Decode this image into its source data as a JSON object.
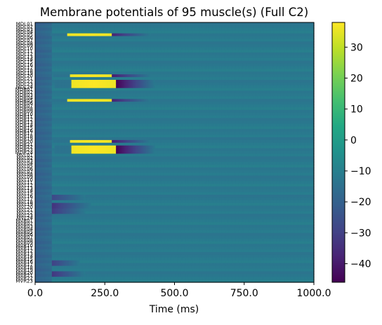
{
  "chart_data": {
    "type": "heatmap",
    "title": "Membrane potentials of 95 muscle(s) (Full C2)",
    "xlabel": "Time (ms)",
    "ylabel": "",
    "xlim": [
      0,
      1000
    ],
    "x_ticks": [
      "0.0",
      "250.0",
      "500.0",
      "750.0",
      "1000.0"
    ],
    "x_tick_values": [
      0,
      250,
      500,
      750,
      1000
    ],
    "colorbar": {
      "colormap": "viridis",
      "range": [
        -46,
        38
      ],
      "ticks": [
        -40,
        -30,
        -20,
        -10,
        0,
        10,
        20,
        30
      ],
      "tick_labels": [
        "−40",
        "−30",
        "−20",
        "−10",
        "0",
        "10",
        "20",
        "30"
      ]
    },
    "row_count": 95,
    "row_labels": [
      "MDL01",
      "MDL02",
      "MDL03",
      "MDL04",
      "MDL05",
      "MDL06",
      "MDL07",
      "MDL08",
      "MDL09",
      "MDL10",
      "MDL11",
      "MDL12",
      "MDL13",
      "MDL14",
      "MDL15",
      "MDL16",
      "MDL17",
      "MDL18",
      "MDL19",
      "MDL20",
      "MDL21",
      "MDL22",
      "MDL23",
      "MDL24",
      "MDR01",
      "MDR02",
      "MDR03",
      "MDR04",
      "MDR05",
      "MDR06",
      "MDR07",
      "MDR08",
      "MDR09",
      "MDR10",
      "MDR11",
      "MDR12",
      "MDR13",
      "MDR14",
      "MDR15",
      "MDR16",
      "MDR17",
      "MDR18",
      "MDR19",
      "MDR20",
      "MDR21",
      "MDR22",
      "MDR23",
      "MDR24",
      "MVL01",
      "MVL02",
      "MVL03",
      "MVL04",
      "MVL05",
      "MVL06",
      "MVL07",
      "MVL08",
      "MVL09",
      "MVL10",
      "MVL11",
      "MVL12",
      "MVL13",
      "MVL14",
      "MVL15",
      "MVL16",
      "MVL17",
      "MVL18",
      "MVL19",
      "MVL20",
      "MVL21",
      "MVL22",
      "MVL23",
      "MVL24",
      "MVR01",
      "MVR02",
      "MVR03",
      "MVR04",
      "MVR05",
      "MVR06",
      "MVR07",
      "MVR08",
      "MVR09",
      "MVR10",
      "MVR11",
      "MVR12",
      "MVR13",
      "MVR14",
      "MVR15",
      "MVR16",
      "MVR17",
      "MVR18",
      "MVR19",
      "MVR20",
      "MVR21",
      "MVR22",
      "MVR23"
    ],
    "baseline_mV": -12,
    "hot_rows": [
      {
        "rows": [
          4
        ],
        "start_ms": 115,
        "end_ms": 275,
        "peak_mV": 38,
        "trough_mV": -38
      },
      {
        "rows": [
          19
        ],
        "start_ms": 125,
        "end_ms": 275,
        "peak_mV": 38,
        "trough_mV": -40
      },
      {
        "rows": [
          21,
          22,
          23
        ],
        "start_ms": 130,
        "end_ms": 290,
        "peak_mV": 38,
        "trough_mV": -46
      },
      {
        "rows": [
          28
        ],
        "start_ms": 115,
        "end_ms": 275,
        "peak_mV": 38,
        "trough_mV": -38
      },
      {
        "rows": [
          43
        ],
        "start_ms": 125,
        "end_ms": 275,
        "peak_mV": 38,
        "trough_mV": -40
      },
      {
        "rows": [
          45,
          46,
          47
        ],
        "start_ms": 130,
        "end_ms": 290,
        "peak_mV": 38,
        "trough_mV": -46
      }
    ],
    "dark_rows": [
      {
        "rows": [
          63,
          64
        ],
        "start_ms": 60,
        "end_ms": 180,
        "value_mV": -28
      },
      {
        "rows": [
          66,
          67
        ],
        "start_ms": 60,
        "end_ms": 200,
        "value_mV": -34
      },
      {
        "rows": [
          68,
          69
        ],
        "start_ms": 60,
        "end_ms": 180,
        "value_mV": -32
      },
      {
        "rows": [
          87,
          88
        ],
        "start_ms": 60,
        "end_ms": 160,
        "value_mV": -30
      },
      {
        "rows": [
          91,
          92
        ],
        "start_ms": 60,
        "end_ms": 180,
        "value_mV": -33
      }
    ]
  }
}
